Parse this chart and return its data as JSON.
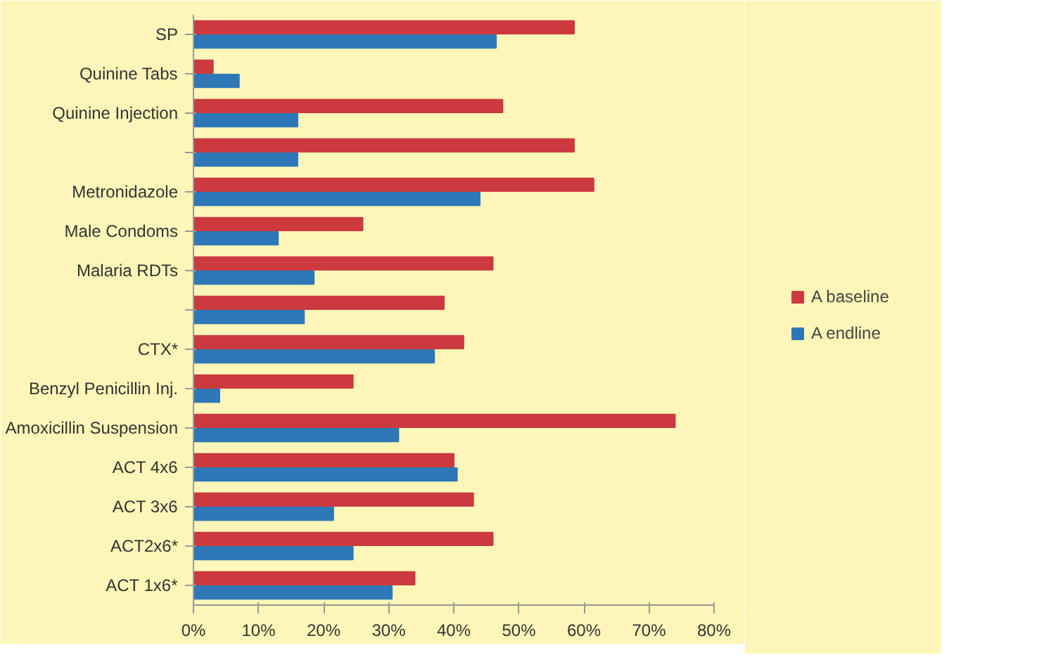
{
  "chart_data": {
    "type": "bar",
    "orientation": "horizontal",
    "categories": [
      "SP",
      "Quinine Tabs",
      "Quinine Injection",
      null,
      "Metronidazole",
      "Male Condoms",
      "Malaria RDTs",
      null,
      "CTX*",
      "Benzyl Penicillin Inj.",
      "Amoxicillin Suspension",
      "ACT 4x6",
      "ACT 3x6",
      "ACT2x6*",
      "ACT 1x6*"
    ],
    "series": [
      {
        "name": "A baseline",
        "color": "#cc3a40",
        "values": [
          58.5,
          3,
          47.5,
          58.5,
          61.5,
          26,
          46,
          38.5,
          41.5,
          24.5,
          74,
          40,
          43,
          46,
          34
        ]
      },
      {
        "name": "A endline",
        "color": "#2f78b8",
        "values": [
          46.5,
          7,
          16,
          16,
          44,
          13,
          18.5,
          17,
          37,
          4,
          31.5,
          40.5,
          21.5,
          24.5,
          30.5
        ]
      }
    ],
    "xlim": [
      0,
      80
    ],
    "xticks": [
      {
        "value": 0,
        "label": "0%"
      },
      {
        "value": 10,
        "label": "10%"
      },
      {
        "value": 20,
        "label": "20%"
      },
      {
        "value": 30,
        "label": "30%"
      },
      {
        "value": 40,
        "label": "40%"
      },
      {
        "value": 50,
        "label": "50%"
      },
      {
        "value": 60,
        "label": "60%"
      },
      {
        "value": 70,
        "label": "70%"
      },
      {
        "value": 80,
        "label": "80%"
      }
    ],
    "grid": false,
    "legend": "right"
  }
}
